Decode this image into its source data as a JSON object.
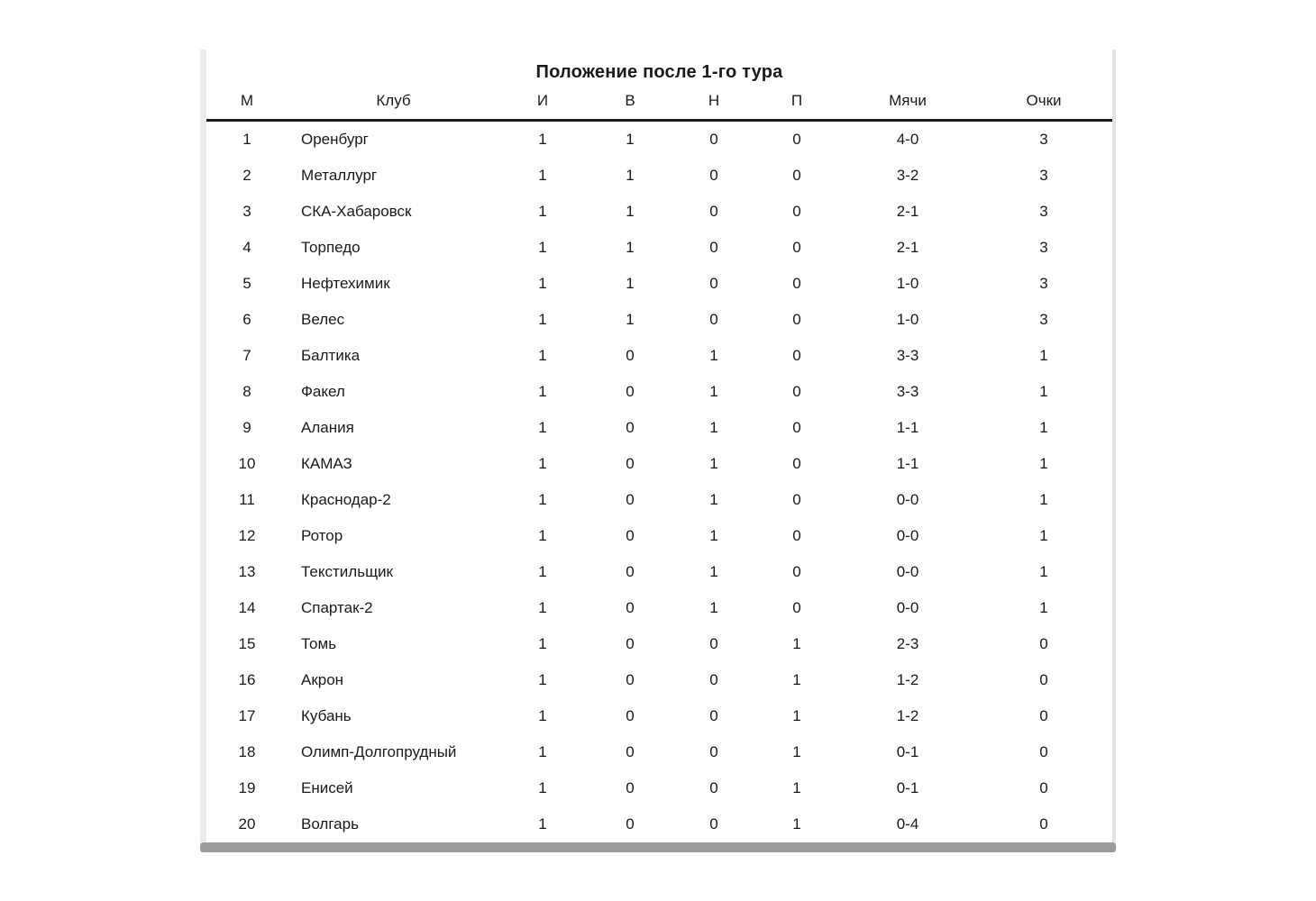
{
  "page": {
    "background": "#ffffff"
  },
  "panel": {
    "background": "#ffffff",
    "side_border_color": "#ececec",
    "bottom_shadow_color": "#9c9c9c",
    "header_rule_color": "#1a1a1a",
    "text_color": "#1a1a1a"
  },
  "title": "Положение после 1-го тура",
  "table": {
    "columns": [
      {
        "key": "pos",
        "label": "М"
      },
      {
        "key": "club",
        "label": "Клуб"
      },
      {
        "key": "played",
        "label": "И"
      },
      {
        "key": "won",
        "label": "В"
      },
      {
        "key": "drawn",
        "label": "Н"
      },
      {
        "key": "lost",
        "label": "П"
      },
      {
        "key": "goals",
        "label": "Мячи"
      },
      {
        "key": "points",
        "label": "Очки"
      }
    ],
    "rows": [
      {
        "pos": "1",
        "club": "Оренбург",
        "played": "1",
        "won": "1",
        "drawn": "0",
        "lost": "0",
        "goals": "4-0",
        "points": "3"
      },
      {
        "pos": "2",
        "club": "Металлург",
        "played": "1",
        "won": "1",
        "drawn": "0",
        "lost": "0",
        "goals": "3-2",
        "points": "3"
      },
      {
        "pos": "3",
        "club": "СКА-Хабаровск",
        "played": "1",
        "won": "1",
        "drawn": "0",
        "lost": "0",
        "goals": "2-1",
        "points": "3"
      },
      {
        "pos": "4",
        "club": "Торпедо",
        "played": "1",
        "won": "1",
        "drawn": "0",
        "lost": "0",
        "goals": "2-1",
        "points": "3"
      },
      {
        "pos": "5",
        "club": "Нефтехимик",
        "played": "1",
        "won": "1",
        "drawn": "0",
        "lost": "0",
        "goals": "1-0",
        "points": "3"
      },
      {
        "pos": "6",
        "club": "Велес",
        "played": "1",
        "won": "1",
        "drawn": "0",
        "lost": "0",
        "goals": "1-0",
        "points": "3"
      },
      {
        "pos": "7",
        "club": "Балтика",
        "played": "1",
        "won": "0",
        "drawn": "1",
        "lost": "0",
        "goals": "3-3",
        "points": "1"
      },
      {
        "pos": "8",
        "club": "Факел",
        "played": "1",
        "won": "0",
        "drawn": "1",
        "lost": "0",
        "goals": "3-3",
        "points": "1"
      },
      {
        "pos": "9",
        "club": "Алания",
        "played": "1",
        "won": "0",
        "drawn": "1",
        "lost": "0",
        "goals": "1-1",
        "points": "1"
      },
      {
        "pos": "10",
        "club": "КАМАЗ",
        "played": "1",
        "won": "0",
        "drawn": "1",
        "lost": "0",
        "goals": "1-1",
        "points": "1"
      },
      {
        "pos": "11",
        "club": "Краснодар-2",
        "played": "1",
        "won": "0",
        "drawn": "1",
        "lost": "0",
        "goals": "0-0",
        "points": "1"
      },
      {
        "pos": "12",
        "club": "Ротор",
        "played": "1",
        "won": "0",
        "drawn": "1",
        "lost": "0",
        "goals": "0-0",
        "points": "1"
      },
      {
        "pos": "13",
        "club": "Текстильщик",
        "played": "1",
        "won": "0",
        "drawn": "1",
        "lost": "0",
        "goals": "0-0",
        "points": "1"
      },
      {
        "pos": "14",
        "club": "Спартак-2",
        "played": "1",
        "won": "0",
        "drawn": "1",
        "lost": "0",
        "goals": "0-0",
        "points": "1"
      },
      {
        "pos": "15",
        "club": "Томь",
        "played": "1",
        "won": "0",
        "drawn": "0",
        "lost": "1",
        "goals": "2-3",
        "points": "0"
      },
      {
        "pos": "16",
        "club": "Акрон",
        "played": "1",
        "won": "0",
        "drawn": "0",
        "lost": "1",
        "goals": "1-2",
        "points": "0"
      },
      {
        "pos": "17",
        "club": "Кубань",
        "played": "1",
        "won": "0",
        "drawn": "0",
        "lost": "1",
        "goals": "1-2",
        "points": "0"
      },
      {
        "pos": "18",
        "club": "Олимп-Долгопрудный",
        "played": "1",
        "won": "0",
        "drawn": "0",
        "lost": "1",
        "goals": "0-1",
        "points": "0"
      },
      {
        "pos": "19",
        "club": "Енисей",
        "played": "1",
        "won": "0",
        "drawn": "0",
        "lost": "1",
        "goals": "0-1",
        "points": "0"
      },
      {
        "pos": "20",
        "club": "Волгарь",
        "played": "1",
        "won": "0",
        "drawn": "0",
        "lost": "1",
        "goals": "0-4",
        "points": "0"
      }
    ]
  }
}
